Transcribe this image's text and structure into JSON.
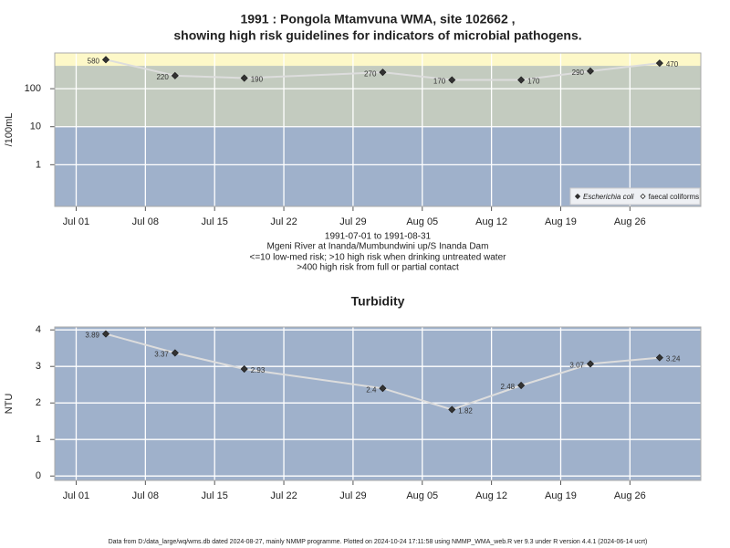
{
  "title": [
    "1991 : Pongola Mtamvuna WMA, site 102662 ,",
    "showing high risk guidelines for indicators of microbial pathogens."
  ],
  "subtitle": [
    "1991-07-01 to 1991-08-31",
    "Mgeni River at Inanda/Mumbundwini up/S Inanda Dam",
    "<=10 low-med risk; >10 high risk when drinking untreated water",
    ">400 high risk from full or partial contact"
  ],
  "footer": "Data from D:/data_large/wq/wms.db dated 2024-08-27, mainly NMMP programme. Plotted on 2024-10-24 17:11:58 using NMMP_WMA_web.R ver 9.3 under R version 4.4.1 (2024-06-14 ucrt)",
  "chart_data": [
    {
      "type": "line",
      "y_label": "/100mL",
      "log_scale": true,
      "x": [
        "1991-07-04",
        "1991-07-11",
        "1991-07-18",
        "1991-08-01",
        "1991-08-08",
        "1991-08-15",
        "1991-08-22",
        "1991-08-29"
      ],
      "series": [
        {
          "name": "Escherichia coli",
          "color": "#333333",
          "values": [
            580,
            220,
            190,
            270,
            170,
            170,
            290,
            470
          ]
        },
        {
          "name": "faecal coliforms",
          "color": "#ffffff",
          "values": [
            null,
            null,
            null,
            null,
            null,
            null,
            null,
            null
          ]
        }
      ],
      "line_color": "#dddddd",
      "xlim": [
        "1991-06-28T20:00",
        "1991-09-02T04:00"
      ],
      "xticks": [
        {
          "value": "1991-07-01",
          "label": "Jul 01"
        },
        {
          "value": "1991-07-08",
          "label": "Jul 08"
        },
        {
          "value": "1991-07-15",
          "label": "Jul 15"
        },
        {
          "value": "1991-07-22",
          "label": "Jul 22"
        },
        {
          "value": "1991-07-29",
          "label": "Jul 29"
        },
        {
          "value": "1991-08-05",
          "label": "Aug 05"
        },
        {
          "value": "1991-08-12",
          "label": "Aug 12"
        },
        {
          "value": "1991-08-19",
          "label": "Aug 19"
        },
        {
          "value": "1991-08-26",
          "label": "Aug 26"
        }
      ],
      "ylim": [
        0.08,
        870
      ],
      "yticks": [
        1,
        10,
        100
      ],
      "thresholds": [
        10,
        400
      ],
      "band_colors": [
        "#9fb1cb",
        "#c3cbbf",
        "#fdf8c8"
      ],
      "grid": true,
      "legend": "bottom right"
    },
    {
      "type": "line",
      "title": "Turbidity",
      "y_label": "NTU",
      "log_scale": false,
      "x": [
        "1991-07-04",
        "1991-07-11",
        "1991-07-18",
        "1991-08-01",
        "1991-08-08",
        "1991-08-15",
        "1991-08-22",
        "1991-08-29"
      ],
      "series": [
        {
          "name": "Turbidity",
          "color": "#333333",
          "values": [
            3.89,
            3.37,
            2.93,
            2.4,
            1.82,
            2.48,
            3.07,
            3.24
          ]
        }
      ],
      "line_color": "#dddddd",
      "xlim": [
        "1991-06-28T20:00",
        "1991-09-02T04:00"
      ],
      "xticks": [
        {
          "value": "1991-07-01",
          "label": "Jul 01"
        },
        {
          "value": "1991-07-08",
          "label": "Jul 08"
        },
        {
          "value": "1991-07-15",
          "label": "Jul 15"
        },
        {
          "value": "1991-07-22",
          "label": "Jul 22"
        },
        {
          "value": "1991-07-29",
          "label": "Jul 29"
        },
        {
          "value": "1991-08-05",
          "label": "Aug 05"
        },
        {
          "value": "1991-08-12",
          "label": "Aug 12"
        },
        {
          "value": "1991-08-19",
          "label": "Aug 19"
        },
        {
          "value": "1991-08-26",
          "label": "Aug 26"
        }
      ],
      "ylim": [
        -0.12,
        4.08
      ],
      "yticks": [
        0,
        1,
        2,
        3,
        4
      ],
      "background": "#9fb1cb",
      "grid": true
    }
  ]
}
